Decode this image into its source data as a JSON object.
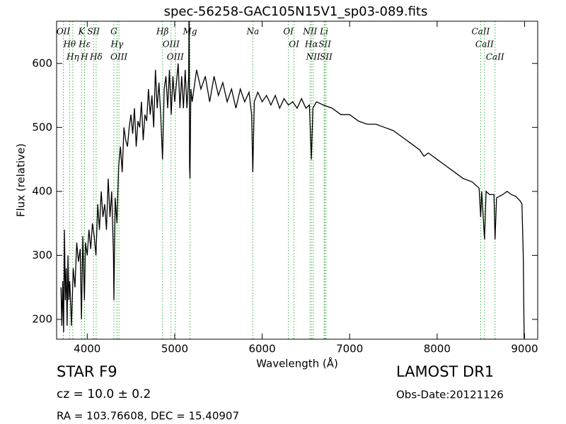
{
  "chart_data": {
    "type": "line",
    "title": "spec-56258-GAC105N15V1_sp03-089.fits",
    "xlabel": "Wavelength (Å)",
    "ylabel": "Flux (relative)",
    "x": [
      3700,
      3710,
      3720,
      3730,
      3740,
      3750,
      3760,
      3770,
      3780,
      3790,
      3800,
      3820,
      3840,
      3860,
      3880,
      3900,
      3920,
      3934,
      3950,
      3968,
      3980,
      4000,
      4020,
      4040,
      4060,
      4080,
      4100,
      4120,
      4140,
      4160,
      4180,
      4200,
      4220,
      4240,
      4260,
      4280,
      4300,
      4305,
      4320,
      4340,
      4360,
      4380,
      4400,
      4420,
      4440,
      4460,
      4480,
      4500,
      4520,
      4540,
      4560,
      4580,
      4600,
      4620,
      4640,
      4660,
      4680,
      4700,
      4720,
      4740,
      4760,
      4780,
      4800,
      4820,
      4840,
      4861,
      4880,
      4900,
      4920,
      4940,
      4960,
      4980,
      5000,
      5020,
      5040,
      5060,
      5080,
      5100,
      5120,
      5140,
      5160,
      5165,
      5170,
      5175,
      5185,
      5200,
      5250,
      5300,
      5350,
      5400,
      5450,
      5500,
      5550,
      5600,
      5650,
      5700,
      5750,
      5800,
      5850,
      5880,
      5893,
      5910,
      5950,
      6000,
      6050,
      6100,
      6150,
      6200,
      6250,
      6300,
      6350,
      6400,
      6450,
      6500,
      6540,
      6563,
      6580,
      6620,
      6700,
      6800,
      6900,
      7000,
      7100,
      7200,
      7300,
      7400,
      7500,
      7600,
      7700,
      7800,
      7850,
      7900,
      8000,
      8100,
      8200,
      8300,
      8400,
      8480,
      8498,
      8510,
      8542,
      8560,
      8600,
      8650,
      8662,
      8680,
      8750,
      8800,
      8850,
      8900,
      8950,
      8970,
      8985,
      8995
    ],
    "series": [
      {
        "color": "#000000",
        "values": [
          250,
          190,
          260,
          180,
          340,
          230,
          280,
          190,
          300,
          230,
          260,
          190,
          280,
          250,
          320,
          290,
          310,
          200,
          330,
          230,
          320,
          300,
          340,
          310,
          350,
          330,
          300,
          380,
          340,
          400,
          360,
          380,
          340,
          420,
          360,
          400,
          300,
          230,
          390,
          350,
          440,
          470,
          430,
          500,
          480,
          470,
          500,
          520,
          490,
          530,
          470,
          510,
          500,
          540,
          480,
          520,
          510,
          560,
          520,
          550,
          500,
          590,
          530,
          570,
          520,
          450,
          560,
          580,
          530,
          590,
          520,
          580,
          540,
          570,
          600,
          530,
          580,
          530,
          590,
          530,
          580,
          700,
          440,
          420,
          560,
          540,
          590,
          560,
          580,
          540,
          580,
          550,
          570,
          540,
          560,
          530,
          560,
          540,
          555,
          520,
          430,
          540,
          555,
          540,
          550,
          535,
          550,
          530,
          545,
          535,
          540,
          530,
          545,
          530,
          535,
          450,
          530,
          540,
          535,
          530,
          520,
          520,
          510,
          505,
          505,
          500,
          495,
          485,
          475,
          465,
          455,
          460,
          450,
          440,
          430,
          420,
          415,
          405,
          360,
          400,
          325,
          400,
          395,
          395,
          325,
          390,
          395,
          400,
          395,
          392,
          385,
          380,
          300,
          170
        ]
      }
    ],
    "xlim": [
      3650,
      9150
    ],
    "ylim": [
      169,
      666
    ],
    "xticks": [
      4000,
      5000,
      6000,
      7000,
      8000,
      9000
    ],
    "yticks": [
      200,
      300,
      400,
      500,
      600
    ],
    "line_color": "#3cb043",
    "spectral_lines": [
      {
        "label": "OII",
        "wavelength": 3727
      },
      {
        "label": "Hθ",
        "wavelength": 3798
      },
      {
        "label": "Hη",
        "wavelength": 3835
      },
      {
        "label": "K",
        "wavelength": 3934
      },
      {
        "label": "Hε",
        "wavelength": 3970
      },
      {
        "label": "H",
        "wavelength": 3968
      },
      {
        "label": "SII",
        "wavelength": 4072
      },
      {
        "label": "Hδ",
        "wavelength": 4102
      },
      {
        "label": "G",
        "wavelength": 4305
      },
      {
        "label": "Hγ",
        "wavelength": 4340
      },
      {
        "label": "OIII",
        "wavelength": 4363
      },
      {
        "label": "Hβ",
        "wavelength": 4861
      },
      {
        "label": "OIII",
        "wavelength": 4959
      },
      {
        "label": "OIII",
        "wavelength": 5007
      },
      {
        "label": "Mg",
        "wavelength": 5175
      },
      {
        "label": "Na",
        "wavelength": 5893
      },
      {
        "label": "OI",
        "wavelength": 6300
      },
      {
        "label": "OI",
        "wavelength": 6364
      },
      {
        "label": "NII",
        "wavelength": 6548
      },
      {
        "label": "Hα",
        "wavelength": 6563
      },
      {
        "label": "NII",
        "wavelength": 6583
      },
      {
        "label": "Li",
        "wavelength": 6708
      },
      {
        "label": "SII",
        "wavelength": 6716
      },
      {
        "label": "SII",
        "wavelength": 6731
      },
      {
        "label": "CaII",
        "wavelength": 8498
      },
      {
        "label": "CaII",
        "wavelength": 8542
      },
      {
        "label": "CaII",
        "wavelength": 8662
      }
    ]
  },
  "info": {
    "object": "STAR   F9",
    "redshift": "cz = 10.0  ± 0.2",
    "coords": "RA = 103.76608, DEC = 15.40907",
    "survey": "LAMOST DR1",
    "obs_date": "Obs-Date:20121126"
  }
}
